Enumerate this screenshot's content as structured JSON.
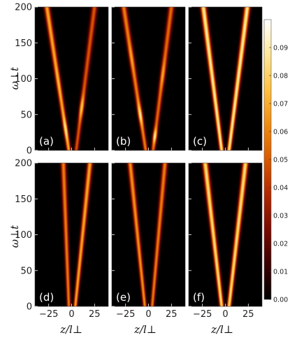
{
  "chart_data": {
    "type": "heatmap",
    "description_free": true,
    "xlabel": "z/l⊥",
    "ylabel": "ω⊥t",
    "xlim": [
      -40,
      40
    ],
    "ylim": [
      0,
      200
    ],
    "xticks": [
      -25,
      0,
      25
    ],
    "yticks": [
      0,
      50,
      100,
      150,
      200
    ],
    "colorbar": {
      "range": [
        0,
        0.1
      ],
      "ticks": [
        "0.00",
        "0.01",
        "0.02",
        "0.03",
        "0.04",
        "0.05",
        "0.06",
        "0.07",
        "0.08",
        "0.09"
      ],
      "colormap": [
        "#000000",
        "#3a0000",
        "#7a0a00",
        "#b02800",
        "#d85a00",
        "#f08c10",
        "#ffc040",
        "#ffe89a",
        "#ffffff"
      ]
    },
    "panels": [
      {
        "label": "(a)",
        "row": 0,
        "col": 0,
        "beams": [
          {
            "z0": -3,
            "v": -0.12,
            "amp": 0.07,
            "width": 2.2,
            "pulses": [
              [
                30,
                0.09,
                14
              ],
              [
                95,
                0.075,
                18
              ]
            ]
          },
          {
            "z0": 5,
            "v": 0.1,
            "amp": 0.05,
            "width": 2.2,
            "pulses": [
              [
                60,
                0.08,
                16
              ],
              [
                160,
                0.05,
                20
              ]
            ]
          }
        ]
      },
      {
        "label": "(b)",
        "row": 0,
        "col": 1,
        "beams": [
          {
            "z0": -3,
            "v": -0.12,
            "amp": 0.06,
            "width": 2.2,
            "pulses": [
              [
                50,
                0.09,
                14
              ],
              [
                130,
                0.07,
                18
              ]
            ]
          },
          {
            "z0": 5,
            "v": 0.1,
            "amp": 0.055,
            "width": 2.2,
            "pulses": [
              [
                20,
                0.09,
                10
              ],
              [
                105,
                0.07,
                18
              ]
            ]
          }
        ]
      },
      {
        "label": "(c)",
        "row": 0,
        "col": 2,
        "beams": [
          {
            "z0": -4,
            "v": -0.1,
            "amp": 0.09,
            "width": 2.2,
            "pulses": []
          },
          {
            "z0": 4,
            "v": 0.1,
            "amp": 0.09,
            "width": 2.2,
            "pulses": []
          }
        ]
      },
      {
        "label": "(d)",
        "row": 1,
        "col": 0,
        "beams": [
          {
            "z0": -3,
            "v": -0.03,
            "amp": 0.06,
            "width": 2.0,
            "pulses": []
          },
          {
            "z0": 4,
            "v": 0.08,
            "amp": 0.07,
            "width": 2.0,
            "pulses": []
          }
        ]
      },
      {
        "label": "(e)",
        "row": 1,
        "col": 1,
        "beams": [
          {
            "z0": -4,
            "v": -0.08,
            "amp": 0.065,
            "width": 2.0,
            "pulses": []
          },
          {
            "z0": 4,
            "v": 0.07,
            "amp": 0.06,
            "width": 2.0,
            "pulses": []
          }
        ]
      },
      {
        "label": "(f)",
        "row": 1,
        "col": 2,
        "beams": [
          {
            "z0": -4,
            "v": -0.09,
            "amp": 0.085,
            "width": 2.2,
            "pulses": []
          },
          {
            "z0": 4,
            "v": 0.09,
            "amp": 0.085,
            "width": 2.2,
            "pulses": []
          }
        ]
      }
    ]
  }
}
